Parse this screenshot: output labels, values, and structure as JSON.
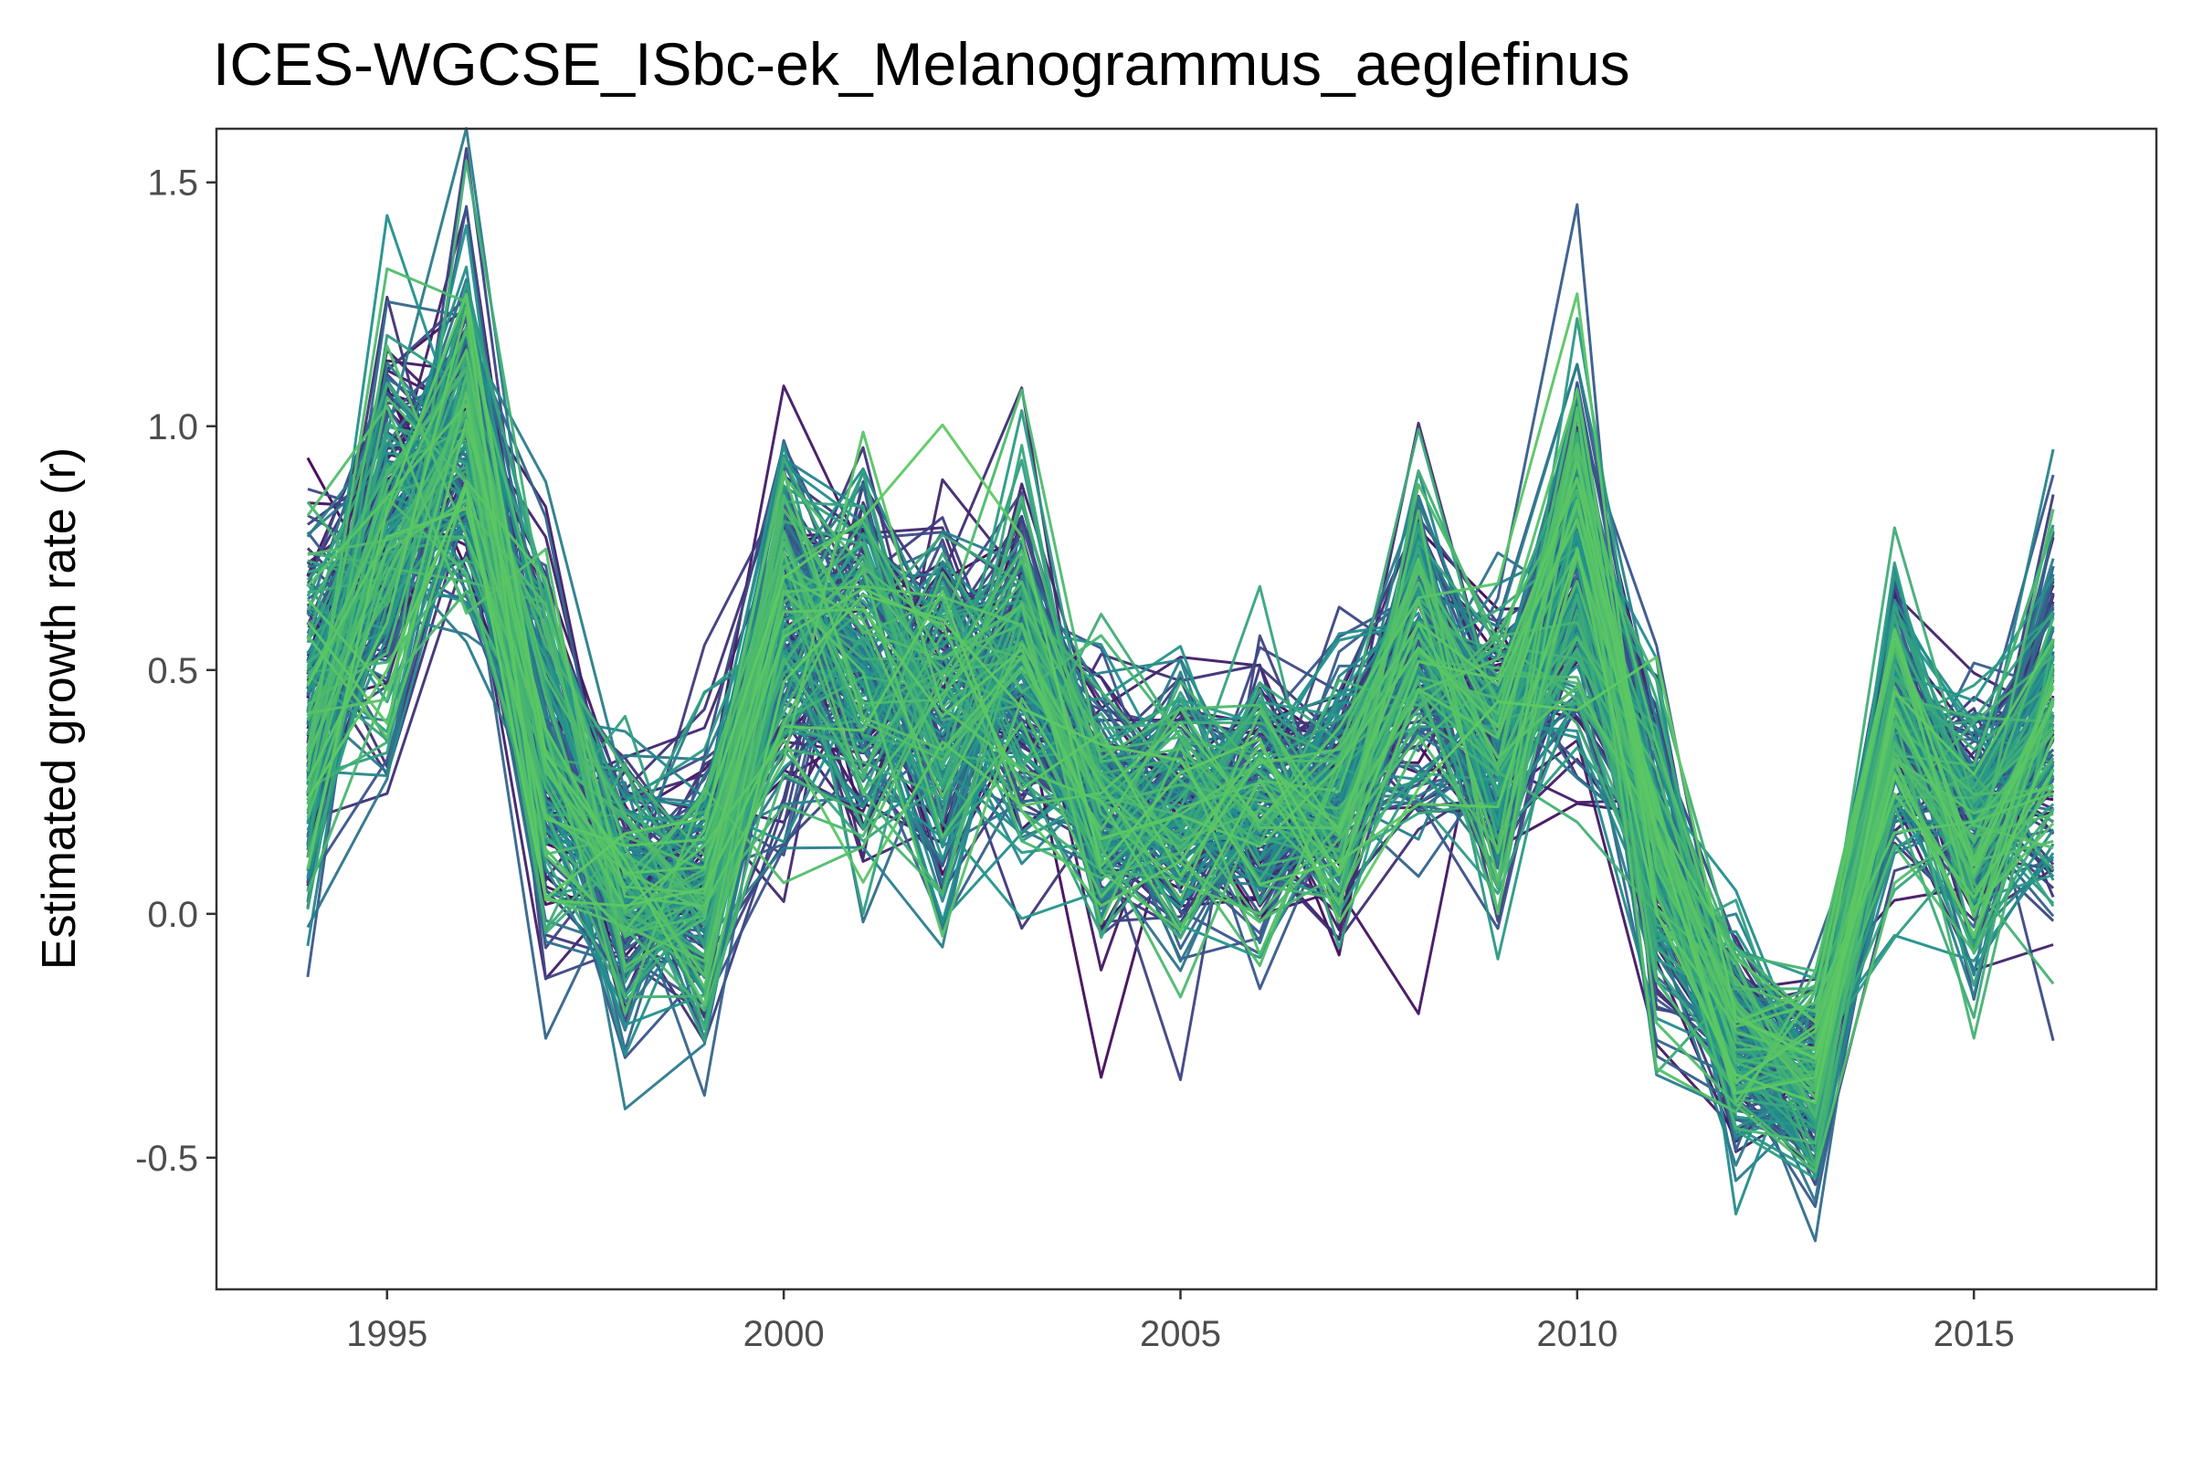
{
  "chart_data": {
    "type": "line",
    "title": "ICES-WGCSE_ISbc-ek_Melanogrammus_aeglefinus",
    "ylabel": "Estimated growth rate (r)",
    "xlabel": "",
    "x": [
      1994,
      1995,
      1996,
      1997,
      1998,
      1999,
      2000,
      2001,
      2002,
      2003,
      2004,
      2005,
      2006,
      2007,
      2008,
      2009,
      2010,
      2011,
      2012,
      2013,
      2014,
      2015,
      2016
    ],
    "xlim": [
      1992.85,
      2017.3
    ],
    "ylim": [
      -0.77,
      1.61
    ],
    "xticks": [
      1995,
      2000,
      2005,
      2010,
      2015
    ],
    "xtick_labels": [
      "1995",
      "2000",
      "2005",
      "2010",
      "2015"
    ],
    "yticks": [
      -0.5,
      0.0,
      0.5,
      1.0,
      1.5
    ],
    "ytick_labels": [
      "-0.5",
      "0.0",
      "0.5",
      "1.0",
      "1.5"
    ],
    "grid": false,
    "legend": "none",
    "color_scale": [
      "#440154",
      "#3b528b",
      "#21918c",
      "#5ec962"
    ],
    "series_count": 200,
    "central_trajectory": {
      "name": "",
      "values": [
        0.38,
        0.8,
        0.97,
        0.37,
        0.05,
        0.07,
        0.6,
        0.52,
        0.42,
        0.52,
        0.23,
        0.2,
        0.24,
        0.25,
        0.55,
        0.35,
        0.7,
        0.15,
        -0.27,
        -0.35,
        0.4,
        0.18,
        0.4
      ]
    },
    "spread": [
      0.2,
      0.22,
      0.2,
      0.2,
      0.14,
      0.16,
      0.2,
      0.22,
      0.2,
      0.2,
      0.14,
      0.14,
      0.15,
      0.13,
      0.18,
      0.18,
      0.22,
      0.18,
      0.12,
      0.12,
      0.15,
      0.15,
      0.22
    ]
  }
}
